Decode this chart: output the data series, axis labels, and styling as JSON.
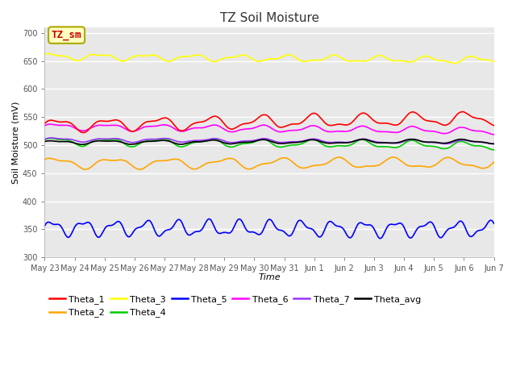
{
  "title": "TZ Soil Moisture",
  "xlabel": "Time",
  "ylabel": "Soil Moisture (mV)",
  "ylim": [
    300,
    710
  ],
  "yticks": [
    300,
    350,
    400,
    450,
    500,
    550,
    600,
    650,
    700
  ],
  "xtick_labels": [
    "May 23",
    "May 24",
    "May 25",
    "May 26",
    "May 27",
    "May 28",
    "May 29",
    "May 30",
    "May 31",
    "Jun 1",
    "Jun 2",
    "Jun 3",
    "Jun 4",
    "Jun 5",
    "Jun 6",
    "Jun 7"
  ],
  "annotation_text": "TZ_sm",
  "annotation_color": "#CC0000",
  "annotation_bg": "#FFFFC0",
  "annotation_border": "#AAAA00",
  "series": [
    {
      "name": "Theta_1",
      "color": "#FF0000",
      "base": 535,
      "amplitude": 10,
      "trend": 0.8,
      "freq": 0.55,
      "phase": 0.0
    },
    {
      "name": "Theta_2",
      "color": "#FFA500",
      "base": 468,
      "amplitude": 8,
      "trend": -0.05,
      "freq": 0.5,
      "phase": 0.3
    },
    {
      "name": "Theta_3",
      "color": "#FFFF00",
      "base": 658,
      "amplitude": 5,
      "trend": -0.4,
      "freq": 0.6,
      "phase": 0.5
    },
    {
      "name": "Theta_4",
      "color": "#00CC00",
      "base": 507,
      "amplitude": 6,
      "trend": -0.5,
      "freq": 0.55,
      "phase": 0.2
    },
    {
      "name": "Theta_5",
      "color": "#0000FF",
      "base": 352,
      "amplitude": 12,
      "trend": -0.1,
      "freq": 0.9,
      "phase": 0.0
    },
    {
      "name": "Theta_6",
      "color": "#FF00FF",
      "base": 533,
      "amplitude": 5,
      "trend": -0.5,
      "freq": 0.55,
      "phase": 0.1
    },
    {
      "name": "Theta_7",
      "color": "#9933FF",
      "base": 510,
      "amplitude": 3,
      "trend": -0.3,
      "freq": 0.55,
      "phase": 0.0
    },
    {
      "name": "Theta_avg",
      "color": "#000000",
      "base": 505,
      "amplitude": 3,
      "trend": 0.1,
      "freq": 0.55,
      "phase": 0.2
    }
  ],
  "n_points": 500,
  "n_days": 16,
  "background_color": "#E8E8E8",
  "fig_bg": "#FFFFFF",
  "grid_color": "#FFFFFF",
  "linewidth": 1.2,
  "title_fontsize": 11,
  "tick_fontsize": 7,
  "label_fontsize": 8,
  "legend_fontsize": 8
}
